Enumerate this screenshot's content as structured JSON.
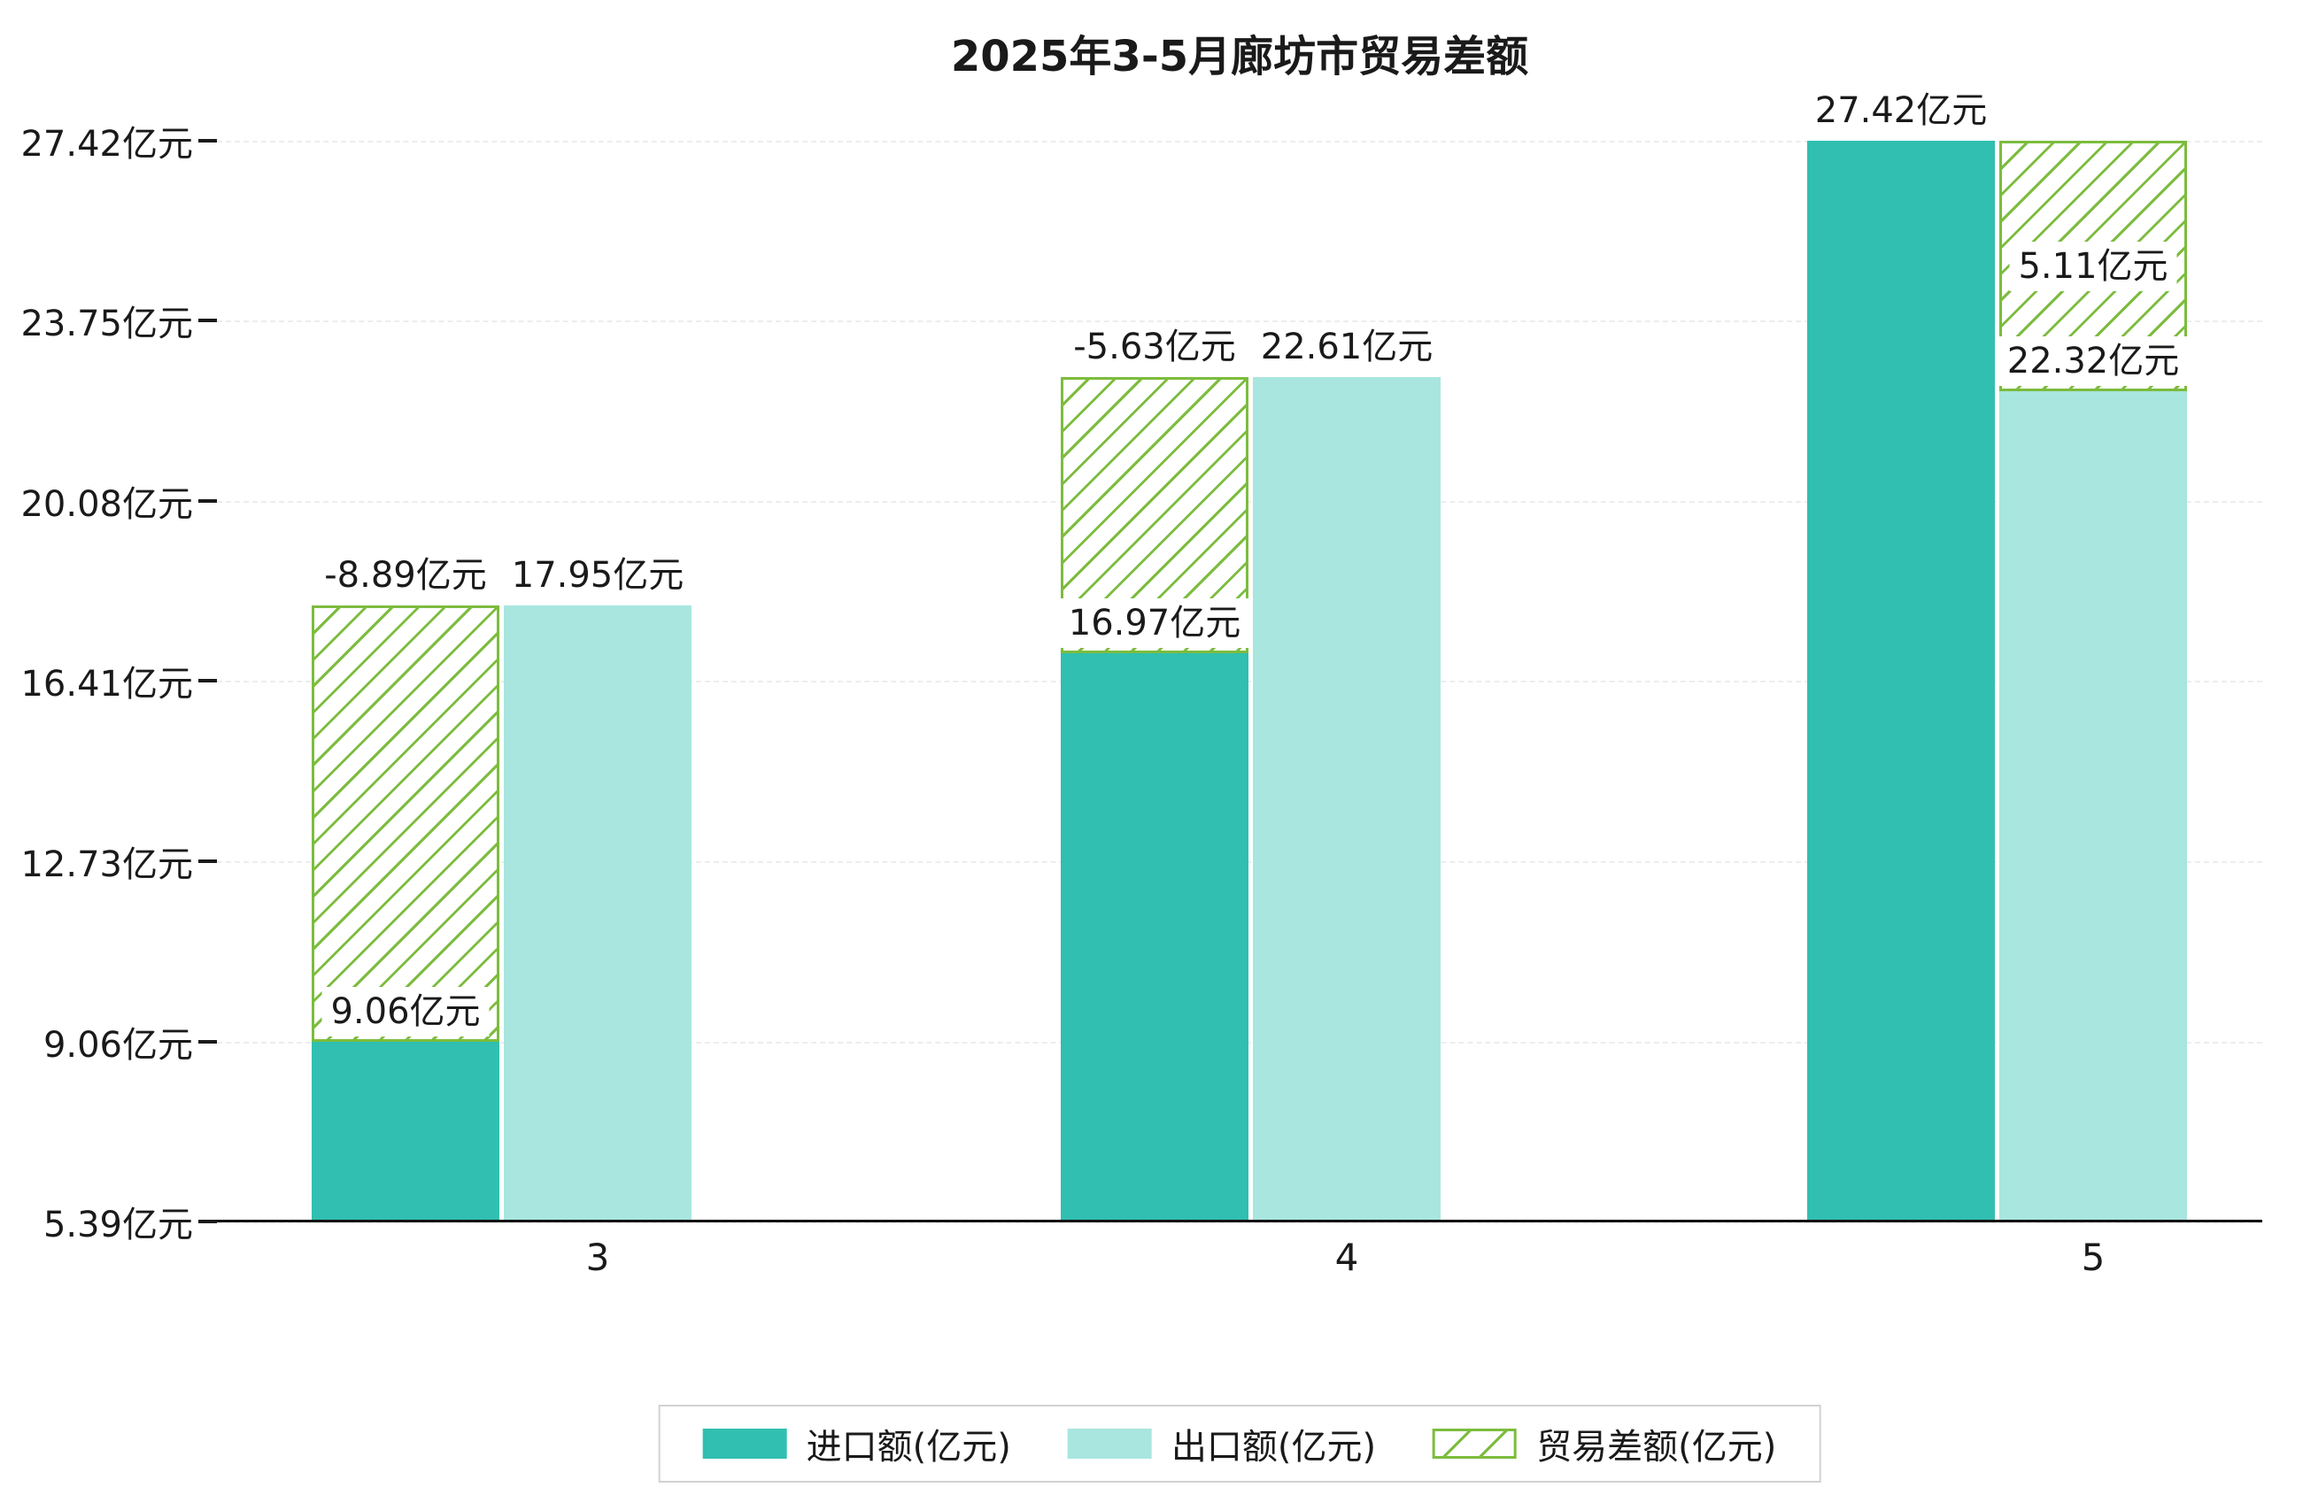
{
  "chart_data": {
    "type": "bar",
    "title": "2025年3-5月廊坊市贸易差额",
    "unit": "亿元",
    "categories": [
      "3",
      "4",
      "5"
    ],
    "series": [
      {
        "name": "进口额(亿元)",
        "role": "import",
        "values": [
          9.06,
          16.97,
          27.42
        ],
        "color": "#30bfb0"
      },
      {
        "name": "出口额(亿元)",
        "role": "export",
        "values": [
          17.95,
          22.61,
          22.32
        ],
        "color": "#a8e6df"
      },
      {
        "name": "贸易差额(亿元)",
        "role": "balance",
        "values": [
          -8.89,
          -5.63,
          5.11
        ],
        "color": "#7cbc3e",
        "pattern": "diagonal-hatch"
      }
    ],
    "bar_labels": {
      "import": [
        "9.06亿元",
        "16.97亿元",
        "27.42亿元"
      ],
      "export": [
        "17.95亿元",
        "22.61亿元",
        "22.32亿元"
      ],
      "balance": [
        "-8.89亿元",
        "-5.63亿元",
        "5.11亿元"
      ]
    },
    "y_ticks": [
      5.39,
      9.06,
      12.73,
      16.41,
      20.08,
      23.75,
      27.42
    ],
    "y_tick_labels": [
      "5.39亿元",
      "9.06亿元",
      "12.73亿元",
      "16.41亿元",
      "20.08亿元",
      "23.75亿元",
      "27.42亿元"
    ],
    "ylim": [
      5.39,
      27.42
    ],
    "grid": true,
    "legend_position": "bottom",
    "legend_items": [
      "进口额(亿元)",
      "出口额(亿元)",
      "贸易差额(亿元)"
    ]
  }
}
